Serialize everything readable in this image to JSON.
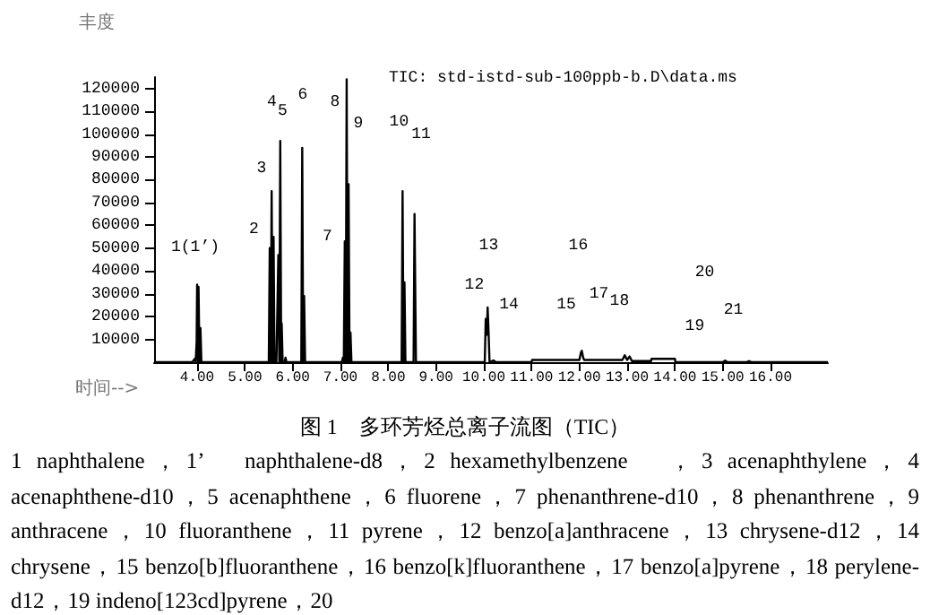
{
  "chart_data": {
    "type": "line",
    "title": "TIC: std-istd-sub-100ppb-b.D\\data.ms",
    "ylabel": "丰度",
    "xlabel": "时间-->",
    "xlim": [
      3.1,
      17.2
    ],
    "xticks": [
      {
        "value": 4,
        "label": "4.00"
      },
      {
        "value": 5,
        "label": "5.00"
      },
      {
        "value": 6,
        "label": "6.00"
      },
      {
        "value": 7,
        "label": "7.00"
      },
      {
        "value": 8,
        "label": "8.00"
      },
      {
        "value": 9,
        "label": "9.00"
      },
      {
        "value": 10,
        "label": "10.00"
      },
      {
        "value": 11,
        "label": "11.00"
      },
      {
        "value": 12,
        "label": "12.00"
      },
      {
        "value": 13,
        "label": "13.00"
      },
      {
        "value": 14,
        "label": "14.00"
      },
      {
        "value": 15,
        "label": "15.00"
      },
      {
        "value": 16,
        "label": "16.00"
      }
    ],
    "ylim": [
      0,
      125000
    ],
    "yticks": [
      10000,
      20000,
      30000,
      40000,
      50000,
      60000,
      70000,
      80000,
      90000,
      100000,
      110000,
      120000
    ],
    "color": "#000000",
    "x": [
      3.1,
      3.9,
      3.95,
      3.97,
      3.99,
      4.0,
      4.02,
      4.03,
      4.05,
      4.07,
      4.09,
      5.5,
      5.52,
      5.54,
      5.56,
      5.58,
      5.6,
      5.62,
      5.64,
      5.66,
      5.68,
      5.7,
      5.72,
      5.74,
      5.76,
      5.77,
      5.79,
      5.83,
      5.85,
      5.87,
      6.18,
      6.2,
      6.22,
      6.24,
      6.26,
      7.03,
      7.05,
      7.07,
      7.09,
      7.11,
      7.13,
      7.15,
      7.17,
      7.19,
      7.21,
      7.23,
      8.28,
      8.3,
      8.32,
      8.34,
      8.36,
      8.53,
      8.55,
      8.58,
      10.02,
      10.04,
      10.06,
      10.08,
      10.1,
      10.12,
      10.2,
      10.25,
      11.0,
      11.01,
      12.0,
      12.03,
      12.05,
      12.08,
      12.1,
      12.9,
      12.95,
      13.0,
      13.05,
      13.1,
      13.5,
      13.51,
      14.0,
      14.01,
      15.0,
      15.05,
      15.1,
      15.5,
      15.55,
      15.6,
      17.2
    ],
    "values": [
      0,
      0,
      1500,
      0,
      9000,
      34000,
      0,
      33000,
      0,
      15000,
      0,
      0,
      50000,
      0,
      75000,
      0,
      55000,
      0,
      3000,
      0,
      0,
      47000,
      0,
      97000,
      0,
      17000,
      0,
      0,
      2000,
      0,
      0,
      94000,
      0,
      29000,
      0,
      0,
      2000,
      0,
      53000,
      0,
      124000,
      0,
      78000,
      0,
      13000,
      0,
      0,
      75000,
      0,
      35000,
      0,
      0,
      65000,
      0,
      0,
      19000,
      12000,
      24000,
      13000,
      0,
      800,
      0,
      0,
      1000,
      1000,
      4000,
      5000,
      2000,
      1000,
      1000,
      3000,
      1000,
      2500,
      500,
      500,
      1500,
      1500,
      0,
      0,
      700,
      0,
      0,
      500,
      0,
      0
    ],
    "annotations": [
      "1(1’)",
      "2",
      "3",
      "4",
      "5",
      "6",
      "7",
      "8",
      "9",
      "10",
      "11",
      "12",
      "13",
      "14",
      "15",
      "16",
      "17",
      "18",
      "19",
      "20",
      "21",
      "图 1　多环芳烃总离子流图（TIC）",
      "1 naphthalene，1’　naphthalene-d8，2 hexamethylbenzene　，3 acenaphthylene，4 acenaphthene-d10，5 acenaphthene，6 fluorene，7 phenanthrene-d10，8 phenanthrene，9 anthracene，10 fluoranthene，11 pyrene，12 benzo[a]anthracene，13 chrysene-d12，14 chrysene，15 benzo[b]fluoranthene，16 benzo[k]fluoranthene，17 benzo[a]pyrene，18 perylene-d12，19 indeno[123cd]pyrene，20"
    ]
  }
}
